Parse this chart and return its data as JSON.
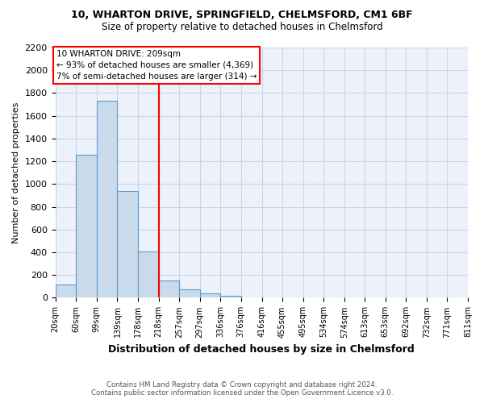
{
  "title1": "10, WHARTON DRIVE, SPRINGFIELD, CHELMSFORD, CM1 6BF",
  "title2": "Size of property relative to detached houses in Chelmsford",
  "xlabel": "Distribution of detached houses by size in Chelmsford",
  "ylabel": "Number of detached properties",
  "footer1": "Contains HM Land Registry data © Crown copyright and database right 2024.",
  "footer2": "Contains public sector information licensed under the Open Government Licence v3.0.",
  "bar_left_edges": [
    20,
    60,
    99,
    139,
    178,
    218,
    257,
    297,
    336,
    376,
    416,
    455,
    495,
    534,
    574,
    613,
    653,
    692,
    732,
    771
  ],
  "bar_widths": [
    40,
    39,
    40,
    39,
    40,
    39,
    40,
    39,
    40,
    40,
    39,
    40,
    39,
    40,
    39,
    40,
    39,
    40,
    39,
    40
  ],
  "bar_heights": [
    115,
    1260,
    1730,
    940,
    410,
    150,
    75,
    40,
    20,
    0,
    0,
    0,
    0,
    0,
    0,
    0,
    0,
    0,
    0,
    0
  ],
  "bar_color": "#c9daea",
  "bar_edgecolor": "#5b9bd5",
  "property_line_x": 218,
  "property_line_color": "red",
  "annotation_line1": "10 WHARTON DRIVE: 209sqm",
  "annotation_line2": "← 93% of detached houses are smaller (4,369)",
  "annotation_line3": "7% of semi-detached houses are larger (314) →",
  "annotation_box_color": "white",
  "annotation_box_edgecolor": "red",
  "xlim": [
    20,
    811
  ],
  "ylim": [
    0,
    2200
  ],
  "xtick_labels": [
    "20sqm",
    "60sqm",
    "99sqm",
    "139sqm",
    "178sqm",
    "218sqm",
    "257sqm",
    "297sqm",
    "336sqm",
    "376sqm",
    "416sqm",
    "455sqm",
    "495sqm",
    "534sqm",
    "574sqm",
    "613sqm",
    "653sqm",
    "692sqm",
    "732sqm",
    "771sqm",
    "811sqm"
  ],
  "xtick_positions": [
    20,
    60,
    99,
    139,
    178,
    218,
    257,
    297,
    336,
    376,
    416,
    455,
    495,
    534,
    574,
    613,
    653,
    692,
    732,
    771,
    811
  ],
  "ytick_positions": [
    0,
    200,
    400,
    600,
    800,
    1000,
    1200,
    1400,
    1600,
    1800,
    2000,
    2200
  ],
  "grid_color": "#c8d4e8",
  "background_color": "#edf2fa"
}
